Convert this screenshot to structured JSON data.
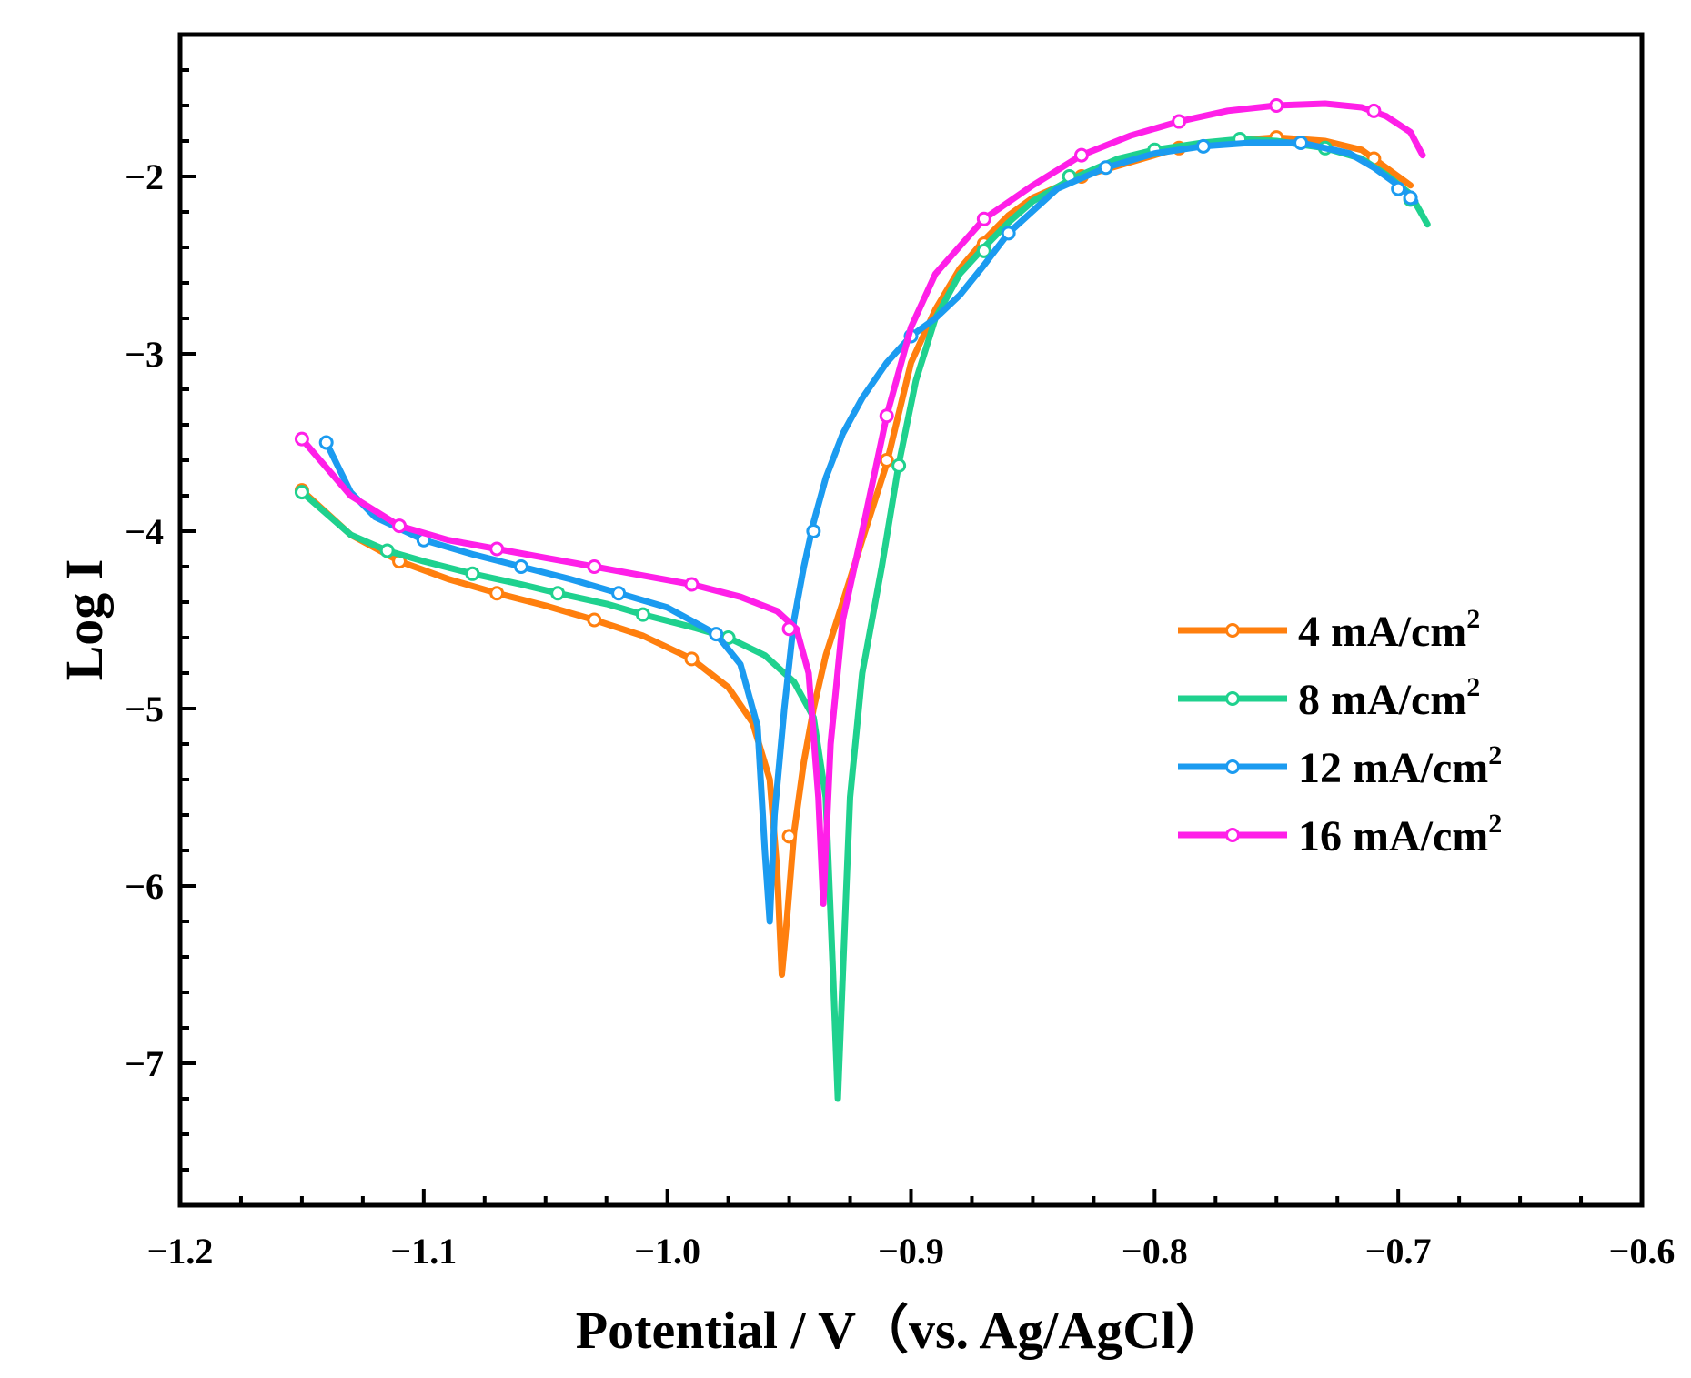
{
  "chart_data": {
    "type": "line",
    "title": "",
    "xlabel": "Potential / V（vs. Ag/AgCl）",
    "ylabel": "Log I",
    "xlim": [
      -1.2,
      -0.6
    ],
    "ylim": [
      -7.8,
      -1.2
    ],
    "xticks": [
      -1.2,
      -1.1,
      -1.0,
      -0.9,
      -0.8,
      -0.7,
      -0.6
    ],
    "xtick_labels": [
      "−1.2",
      "−1.1",
      "−1.0",
      "−0.9",
      "−0.8",
      "−0.7",
      "−0.6"
    ],
    "yticks": [
      -7,
      -6,
      -5,
      -4,
      -3,
      -2
    ],
    "ytick_labels": [
      "−7",
      "−6",
      "−5",
      "−4",
      "−3",
      "−2"
    ],
    "grid": false,
    "legend_position": "right",
    "series": [
      {
        "name": "4 mA/cm2",
        "label_main": "4 mA/cm",
        "label_sup": "2",
        "color": "#ff7f0e",
        "x": [
          -1.15,
          -1.13,
          -1.11,
          -1.09,
          -1.07,
          -1.05,
          -1.03,
          -1.01,
          -0.99,
          -0.975,
          -0.965,
          -0.958,
          -0.955,
          -0.953,
          -0.951,
          -0.948,
          -0.944,
          -0.94,
          -0.935,
          -0.928,
          -0.92,
          -0.91,
          -0.9,
          -0.89,
          -0.88,
          -0.87,
          -0.86,
          -0.85,
          -0.83,
          -0.81,
          -0.79,
          -0.77,
          -0.75,
          -0.73,
          -0.715,
          -0.705,
          -0.695
        ],
        "y": [
          -3.77,
          -4.02,
          -4.17,
          -4.27,
          -4.35,
          -4.42,
          -4.5,
          -4.59,
          -4.72,
          -4.88,
          -5.08,
          -5.4,
          -5.9,
          -6.5,
          -6.2,
          -5.7,
          -5.3,
          -5.0,
          -4.7,
          -4.4,
          -4.05,
          -3.62,
          -3.05,
          -2.75,
          -2.52,
          -2.36,
          -2.22,
          -2.12,
          -2.0,
          -1.92,
          -1.84,
          -1.8,
          -1.78,
          -1.8,
          -1.85,
          -1.95,
          -2.05
        ],
        "marker_x": [
          -1.15,
          -1.11,
          -1.07,
          -1.03,
          -0.99,
          -0.95,
          -0.91,
          -0.87,
          -0.83,
          -0.79,
          -0.75,
          -0.71
        ],
        "marker_y": [
          -3.77,
          -4.17,
          -4.35,
          -4.5,
          -4.72,
          -5.72,
          -3.6,
          -2.38,
          -2.0,
          -1.84,
          -1.78,
          -1.9
        ]
      },
      {
        "name": "8 mA/cm2",
        "label_main": "8 mA/cm",
        "label_sup": "2",
        "color": "#1fd18e",
        "x": [
          -1.15,
          -1.13,
          -1.115,
          -1.1,
          -1.08,
          -1.06,
          -1.045,
          -1.025,
          -1.01,
          -0.99,
          -0.975,
          -0.96,
          -0.948,
          -0.94,
          -0.935,
          -0.932,
          -0.93,
          -0.928,
          -0.925,
          -0.92,
          -0.912,
          -0.905,
          -0.898,
          -0.89,
          -0.88,
          -0.87,
          -0.86,
          -0.85,
          -0.835,
          -0.815,
          -0.8,
          -0.78,
          -0.765,
          -0.75,
          -0.73,
          -0.715,
          -0.705,
          -0.695,
          -0.688
        ],
        "y": [
          -3.78,
          -4.02,
          -4.11,
          -4.17,
          -4.24,
          -4.3,
          -4.35,
          -4.41,
          -4.47,
          -4.54,
          -4.6,
          -4.7,
          -4.85,
          -5.05,
          -5.5,
          -6.5,
          -7.2,
          -6.5,
          -5.5,
          -4.8,
          -4.2,
          -3.62,
          -3.15,
          -2.8,
          -2.55,
          -2.4,
          -2.26,
          -2.14,
          -2.02,
          -1.9,
          -1.85,
          -1.81,
          -1.79,
          -1.8,
          -1.84,
          -1.9,
          -1.99,
          -2.1,
          -2.27
        ],
        "marker_x": [
          -1.15,
          -1.115,
          -1.08,
          -1.045,
          -1.01,
          -0.975,
          -0.905,
          -0.87,
          -0.835,
          -0.8,
          -0.765,
          -0.73,
          -0.695
        ],
        "marker_y": [
          -3.78,
          -4.11,
          -4.24,
          -4.35,
          -4.47,
          -4.6,
          -3.63,
          -2.42,
          -2.0,
          -1.85,
          -1.79,
          -1.84,
          -2.13
        ]
      },
      {
        "name": "12 mA/cm2",
        "label_main": "12 mA/cm",
        "label_sup": "2",
        "color": "#1b9bf0",
        "x": [
          -1.14,
          -1.13,
          -1.12,
          -1.1,
          -1.08,
          -1.06,
          -1.04,
          -1.02,
          -1.0,
          -0.98,
          -0.97,
          -0.963,
          -0.96,
          -0.958,
          -0.956,
          -0.952,
          -0.948,
          -0.944,
          -0.94,
          -0.935,
          -0.928,
          -0.92,
          -0.91,
          -0.9,
          -0.89,
          -0.88,
          -0.87,
          -0.86,
          -0.84,
          -0.82,
          -0.8,
          -0.78,
          -0.76,
          -0.74,
          -0.72,
          -0.71,
          -0.7,
          -0.693
        ],
        "y": [
          -3.5,
          -3.78,
          -3.92,
          -4.05,
          -4.13,
          -4.2,
          -4.27,
          -4.35,
          -4.43,
          -4.58,
          -4.75,
          -5.1,
          -5.8,
          -6.2,
          -5.6,
          -5.0,
          -4.5,
          -4.2,
          -3.95,
          -3.7,
          -3.45,
          -3.25,
          -3.05,
          -2.9,
          -2.8,
          -2.67,
          -2.5,
          -2.32,
          -2.07,
          -1.95,
          -1.87,
          -1.83,
          -1.81,
          -1.81,
          -1.87,
          -1.95,
          -2.05,
          -2.14
        ],
        "marker_x": [
          -1.14,
          -1.1,
          -1.06,
          -1.02,
          -0.98,
          -0.94,
          -0.9,
          -0.86,
          -0.82,
          -0.78,
          -0.74,
          -0.7,
          -0.695
        ],
        "marker_y": [
          -3.5,
          -4.05,
          -4.2,
          -4.35,
          -4.58,
          -4.0,
          -2.9,
          -2.32,
          -1.95,
          -1.83,
          -1.81,
          -2.07,
          -2.12
        ]
      },
      {
        "name": "16 mA/cm2",
        "label_main": "16 mA/cm",
        "label_sup": "2",
        "color": "#ff1fe8",
        "x": [
          -1.15,
          -1.13,
          -1.11,
          -1.09,
          -1.07,
          -1.05,
          -1.03,
          -1.01,
          -0.99,
          -0.97,
          -0.955,
          -0.947,
          -0.942,
          -0.938,
          -0.936,
          -0.933,
          -0.928,
          -0.92,
          -0.91,
          -0.9,
          -0.89,
          -0.87,
          -0.85,
          -0.83,
          -0.81,
          -0.79,
          -0.77,
          -0.75,
          -0.73,
          -0.715,
          -0.705,
          -0.695,
          -0.69
        ],
        "y": [
          -3.48,
          -3.8,
          -3.97,
          -4.05,
          -4.1,
          -4.15,
          -4.2,
          -4.25,
          -4.3,
          -4.37,
          -4.45,
          -4.55,
          -4.8,
          -5.5,
          -6.1,
          -5.2,
          -4.5,
          -4.0,
          -3.35,
          -2.85,
          -2.55,
          -2.24,
          -2.05,
          -1.88,
          -1.77,
          -1.69,
          -1.63,
          -1.6,
          -1.59,
          -1.61,
          -1.66,
          -1.75,
          -1.88
        ],
        "marker_x": [
          -1.15,
          -1.11,
          -1.07,
          -1.03,
          -0.99,
          -0.95,
          -0.91,
          -0.87,
          -0.83,
          -0.79,
          -0.75,
          -0.71
        ],
        "marker_y": [
          -3.48,
          -3.97,
          -4.1,
          -4.2,
          -4.3,
          -4.55,
          -3.35,
          -2.24,
          -1.88,
          -1.69,
          -1.6,
          -1.63
        ]
      }
    ]
  }
}
